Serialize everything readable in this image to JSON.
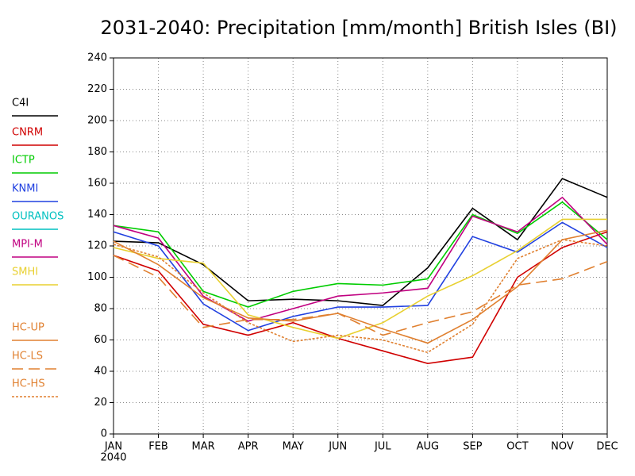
{
  "chart_data": {
    "type": "line",
    "title": "2031-2040: Precipitation [mm/month] British Isles (BI)",
    "categories": [
      "JAN",
      "FEB",
      "MAR",
      "APR",
      "MAY",
      "JUN",
      "JUL",
      "AUG",
      "SEP",
      "OCT",
      "NOV",
      "DEC"
    ],
    "year_label": "2040",
    "ylim": [
      0,
      240
    ],
    "yticks": [
      0,
      20,
      40,
      60,
      80,
      100,
      120,
      140,
      160,
      180,
      200,
      220,
      240
    ],
    "grid": true,
    "legend": "left",
    "series": [
      {
        "name": "C4I",
        "color": "#000000",
        "dash": "solid",
        "values": [
          123,
          122,
          108,
          85,
          86,
          85,
          82,
          106,
          144,
          124,
          163,
          151
        ]
      },
      {
        "name": "CNRM",
        "color": "#d00000",
        "dash": "solid",
        "values": [
          114,
          104,
          70,
          63,
          71,
          61,
          53,
          45,
          49,
          100,
          119,
          129
        ]
      },
      {
        "name": "ICTP",
        "color": "#00cc00",
        "dash": "solid",
        "values": [
          133,
          129,
          91,
          81,
          91,
          96,
          95,
          99,
          140,
          128,
          148,
          124
        ]
      },
      {
        "name": "KNMI",
        "color": "#2040e0",
        "dash": "solid",
        "values": [
          129,
          120,
          83,
          66,
          75,
          81,
          81,
          82,
          126,
          116,
          135,
          119
        ]
      },
      {
        "name": "OURANOS",
        "color": "#00c0c0",
        "dash": "solid",
        "values": [
          null,
          null,
          null,
          null,
          null,
          null,
          null,
          null,
          null,
          null,
          null,
          null
        ]
      },
      {
        "name": "MPI-M",
        "color": "#c00080",
        "dash": "solid",
        "values": [
          133,
          125,
          88,
          72,
          80,
          88,
          90,
          93,
          139,
          129,
          151,
          121
        ]
      },
      {
        "name": "SMHI",
        "color": "#e8d030",
        "dash": "solid",
        "values": [
          119,
          112,
          109,
          76,
          68,
          61,
          71,
          88,
          101,
          117,
          137,
          137
        ]
      },
      {
        "name": "HC-UP",
        "color": "#e08030",
        "dash": "solid",
        "values": [
          123,
          108,
          87,
          74,
          72,
          77,
          67,
          58,
          73,
          94,
          124,
          130
        ]
      },
      {
        "name": "HC-LS",
        "color": "#e08030",
        "dash": "long",
        "values": [
          114,
          100,
          68,
          73,
          73,
          77,
          63,
          71,
          78,
          95,
          99,
          110
        ]
      },
      {
        "name": "HC-HS",
        "color": "#e08030",
        "dash": "short",
        "values": [
          121,
          113,
          90,
          71,
          59,
          63,
          60,
          52,
          70,
          112,
          124,
          120
        ]
      }
    ]
  }
}
